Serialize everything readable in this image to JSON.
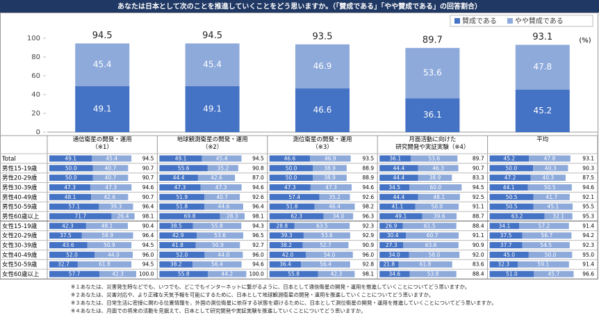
{
  "chart_data": {
    "type": "bar",
    "stacked": true,
    "title": "あなたは日本として次のことを推進していくことをどう思いますか。（「賛成である」「やや賛成である」の回答割合）",
    "unit": "(%)",
    "categories": [
      "通信衛星の開発・運用\n（※1）",
      "地球観測衛星の開発・運用\n（※2）",
      "測位衛星の開発・運用\n（※3）",
      "月面活動に向けた\n研究開発や実証実験（※4）",
      "平均"
    ],
    "series": [
      {
        "name": "賛成である",
        "color": "#4472c4",
        "values": [
          49.1,
          49.1,
          46.6,
          36.1,
          45.2
        ]
      },
      {
        "name": "やや賛成である",
        "color": "#8eaadb",
        "values": [
          45.4,
          45.4,
          46.9,
          53.6,
          47.8
        ]
      }
    ],
    "totals": [
      94.5,
      94.5,
      93.5,
      89.7,
      93.1
    ],
    "ylim": [
      0,
      100
    ],
    "yticks": [
      0,
      20,
      40,
      60,
      80,
      100
    ],
    "legend": "top-right"
  },
  "table": {
    "rows": [
      {
        "label": "Total",
        "values": [
          [
            49.1,
            45.4,
            94.5
          ],
          [
            49.1,
            45.4,
            94.5
          ],
          [
            46.6,
            46.9,
            93.5
          ],
          [
            36.1,
            53.6,
            89.7
          ],
          [
            45.2,
            47.8,
            93.1
          ]
        ],
        "value_labels": [
          [
            "49.1",
            "45.4",
            "94.5"
          ],
          [
            "49.1",
            "45.4",
            "94.5"
          ],
          [
            "46.6",
            "46.9",
            "93.5"
          ],
          [
            "36.1",
            "53.6",
            "89.7"
          ],
          [
            "45.2",
            "47.8",
            "93.1"
          ]
        ]
      },
      {
        "label": "男性15-19歳",
        "values": [
          [
            50.0,
            40.7,
            90.7
          ],
          [
            55.6,
            35.2,
            90.8
          ],
          [
            50.0,
            38.9,
            88.9
          ],
          [
            44.4,
            46.3,
            90.7
          ],
          [
            50.0,
            40.3,
            90.3
          ]
        ],
        "value_labels": [
          [
            "50.0",
            "40.7",
            "90.7"
          ],
          [
            "55.6",
            "35.2",
            "90.8"
          ],
          [
            "50.0",
            "38.9",
            "88.9"
          ],
          [
            "44.4",
            "46.3",
            "90.7"
          ],
          [
            "50.0",
            "40.3",
            "90.3"
          ]
        ]
      },
      {
        "label": "男性20-29歳",
        "values": [
          [
            50.0,
            40.7,
            90.7
          ],
          [
            44.4,
            42.6,
            87.0
          ],
          [
            50.0,
            38.9,
            88.9
          ],
          [
            44.4,
            38.9,
            83.3
          ],
          [
            47.2,
            40.3,
            87.5
          ]
        ],
        "value_labels": [
          [
            "50.0",
            "40.7",
            "90.7"
          ],
          [
            "44.4",
            "42.6",
            "87.0"
          ],
          [
            "50.0",
            "38.9",
            "88.9"
          ],
          [
            "44.4",
            "38.9",
            "83.3"
          ],
          [
            "47.2",
            "40.3",
            "87.5"
          ]
        ]
      },
      {
        "label": "男性30-39歳",
        "values": [
          [
            47.3,
            47.3,
            94.6
          ],
          [
            47.3,
            47.3,
            94.6
          ],
          [
            47.3,
            47.3,
            94.6
          ],
          [
            34.5,
            60.0,
            94.5
          ],
          [
            44.1,
            50.5,
            94.6
          ]
        ],
        "value_labels": [
          [
            "47.3",
            "47.3",
            "94.6"
          ],
          [
            "47.3",
            "47.3",
            "94.6"
          ],
          [
            "47.3",
            "47.3",
            "94.6"
          ],
          [
            "34.5",
            "60.0",
            "94.5"
          ],
          [
            "44.1",
            "50.5",
            "94.6"
          ]
        ]
      },
      {
        "label": "男性40-49歳",
        "values": [
          [
            48.1,
            42.6,
            90.7
          ],
          [
            51.9,
            40.7,
            92.6
          ],
          [
            57.4,
            35.2,
            92.6
          ],
          [
            44.4,
            48.1,
            92.5
          ],
          [
            50.5,
            41.7,
            92.1
          ]
        ],
        "value_labels": [
          [
            "48.1",
            "42.6",
            "90.7"
          ],
          [
            "51.9",
            "40.7",
            "92.6"
          ],
          [
            "57.4",
            "35.2",
            "92.6"
          ],
          [
            "44.4",
            "48.1",
            "92.5"
          ],
          [
            "50.5",
            "41.7",
            "92.1"
          ]
        ]
      },
      {
        "label": "男性50-59歳",
        "values": [
          [
            57.1,
            39.3,
            96.4
          ],
          [
            51.8,
            44.6,
            96.4
          ],
          [
            51.8,
            46.4,
            98.2
          ],
          [
            41.1,
            50.0,
            91.1
          ],
          [
            50.5,
            45.1,
            95.5
          ]
        ],
        "value_labels": [
          [
            "57.1",
            "39.3",
            "96.4"
          ],
          [
            "51.8",
            "44.6",
            "96.4"
          ],
          [
            "51.8",
            "46.4",
            "98.2"
          ],
          [
            "41.1",
            "50.0",
            "91.1"
          ],
          [
            "50.5",
            "45.1",
            "95.5"
          ]
        ]
      },
      {
        "label": "男性60歳以上",
        "values": [
          [
            71.7,
            26.4,
            98.1
          ],
          [
            69.8,
            28.3,
            98.1
          ],
          [
            62.3,
            34.0,
            96.3
          ],
          [
            49.1,
            39.6,
            88.7
          ],
          [
            63.2,
            32.1,
            95.3
          ]
        ],
        "value_labels": [
          [
            "71.7",
            "26.4",
            "98.1"
          ],
          [
            "69.8",
            "28.3",
            "98.1"
          ],
          [
            "62.3",
            "34.0",
            "96.3"
          ],
          [
            "49.1",
            "39.6",
            "88.7"
          ],
          [
            "63.2",
            "32.1",
            "95.3"
          ]
        ]
      },
      {
        "label": "女性15-19歳",
        "values": [
          [
            42.3,
            48.1,
            90.4
          ],
          [
            38.5,
            55.8,
            94.3
          ],
          [
            28.8,
            63.5,
            92.3
          ],
          [
            26.9,
            61.5,
            88.4
          ],
          [
            34.1,
            57.2,
            91.4
          ]
        ],
        "value_labels": [
          [
            "42.3",
            "48.1",
            "90.4"
          ],
          [
            "38.5",
            "55.8",
            "94.3"
          ],
          [
            "28.8",
            "63.5",
            "92.3"
          ],
          [
            "26.9",
            "61.5",
            "88.4"
          ],
          [
            "34.1",
            "57.2",
            "91.4"
          ]
        ]
      },
      {
        "label": "女性20-29歳",
        "values": [
          [
            37.5,
            58.9,
            96.4
          ],
          [
            42.9,
            53.6,
            96.5
          ],
          [
            39.3,
            53.6,
            92.9
          ],
          [
            30.4,
            60.7,
            91.1
          ],
          [
            37.5,
            56.7,
            94.2
          ]
        ],
        "value_labels": [
          [
            "37.5",
            "58.9",
            "96.4"
          ],
          [
            "42.9",
            "53.6",
            "96.5"
          ],
          [
            "39.3",
            "53.6",
            "92.9"
          ],
          [
            "30.4",
            "60.7",
            "91.1"
          ],
          [
            "37.5",
            "56.7",
            "94.2"
          ]
        ]
      },
      {
        "label": "女性30-39歳",
        "values": [
          [
            43.6,
            50.9,
            94.5
          ],
          [
            41.8,
            50.9,
            92.7
          ],
          [
            38.2,
            52.7,
            90.9
          ],
          [
            27.3,
            63.6,
            90.9
          ],
          [
            37.7,
            54.5,
            92.3
          ]
        ],
        "value_labels": [
          [
            "43.6",
            "50.9",
            "94.5"
          ],
          [
            "41.8",
            "50.9",
            "92.7"
          ],
          [
            "38.2",
            "52.7",
            "90.9"
          ],
          [
            "27.3",
            "63.6",
            "90.9"
          ],
          [
            "37.7",
            "54.5",
            "92.3"
          ]
        ]
      },
      {
        "label": "女性40-49歳",
        "values": [
          [
            52.0,
            44.0,
            96.0
          ],
          [
            52.0,
            44.0,
            96.0
          ],
          [
            42.0,
            54.0,
            96.0
          ],
          [
            34.0,
            58.0,
            92.0
          ],
          [
            45.0,
            50.0,
            95.0
          ]
        ],
        "value_labels": [
          [
            "52.0",
            "44.0",
            "96.0"
          ],
          [
            "52.0",
            "44.0",
            "96.0"
          ],
          [
            "42.0",
            "54.0",
            "96.0"
          ],
          [
            "34.0",
            "58.0",
            "92.0"
          ],
          [
            "45.0",
            "50.0",
            "95.0"
          ]
        ]
      },
      {
        "label": "女性50-59歳",
        "values": [
          [
            32.7,
            61.8,
            94.5
          ],
          [
            38.2,
            56.4,
            94.6
          ],
          [
            36.4,
            56.4,
            92.8
          ],
          [
            21.8,
            61.8,
            83.6
          ],
          [
            32.3,
            59.1,
            91.4
          ]
        ],
        "value_labels": [
          [
            "32.7",
            "61.8",
            "94.5"
          ],
          [
            "38.2",
            "56.4",
            "94.6"
          ],
          [
            "36.4",
            "56.4",
            "92.8"
          ],
          [
            "21.8",
            "61.8",
            "83.6"
          ],
          [
            "32.3",
            "59.1",
            "91.4"
          ]
        ]
      },
      {
        "label": "女性60歳以上",
        "values": [
          [
            57.7,
            42.3,
            100.0
          ],
          [
            55.8,
            44.2,
            100.0
          ],
          [
            55.8,
            42.3,
            98.1
          ],
          [
            34.6,
            53.8,
            88.4
          ],
          [
            51.0,
            45.7,
            96.6
          ]
        ],
        "value_labels": [
          [
            "57.7",
            "42.3",
            "100.0"
          ],
          [
            "55.8",
            "44.2",
            "100.0"
          ],
          [
            "55.8",
            "42.3",
            "98.1"
          ],
          [
            "34.6",
            "53.8",
            "88.4"
          ],
          [
            "51.0",
            "45.7",
            "96.6"
          ]
        ]
      }
    ]
  },
  "footnotes": [
    "※１あなたは、災害発生時などでも、いつでも、どこでもインターネットに繋がるように、日本として通信衛星の開発・運用を推進していくことについてどう思いますか。",
    "※２あなたは、災害対応や、より正確な天気予報を可能にするために、日本として地球観測衛星の開発・運用を推進していくことについてどう思いますか。",
    "※３あなたは、日常生活に密接に関わる位置情報を、外国の測位衛星に依存する状態を避けるために、日本として測位衛星の開発・運用を推進していくことについてどう思いますか。",
    "※４あなたは、月面での将来の活動を見据えて、日本として研究開発や実証実験を推進していくことについてどう思いますか。"
  ]
}
